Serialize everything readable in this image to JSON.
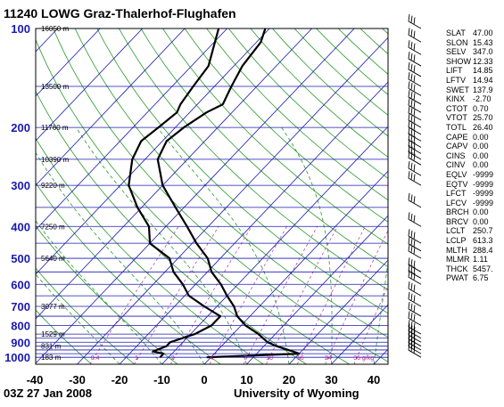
{
  "header": {
    "title": "11240 LOWG Graz-Thalerhof-Flughafen",
    "time": "03Z 27 Jan 2008",
    "source": "University of Wyoming"
  },
  "colors": {
    "grid": "#1a1ab0",
    "dry_adiabat": "#2a9a2a",
    "moist_adiabat": "#2a9a2a",
    "mixing_ratio": "#b0309a",
    "sounding": "#000000"
  },
  "indices": [
    {
      "key": "SLAT",
      "value": "47.00"
    },
    {
      "key": "SLON",
      "value": "15.43"
    },
    {
      "key": "SELV",
      "value": "347.0"
    },
    {
      "key": "SHOW",
      "value": "12.33"
    },
    {
      "key": "LIFT",
      "value": "14.85"
    },
    {
      "key": "LFTV",
      "value": "14.94"
    },
    {
      "key": "SWET",
      "value": "137.9"
    },
    {
      "key": "KINX",
      "value": "-2.70"
    },
    {
      "key": "CTOT",
      "value": "0.70"
    },
    {
      "key": "VTOT",
      "value": "25.70"
    },
    {
      "key": "TOTL",
      "value": "26.40"
    },
    {
      "key": "CAPE",
      "value": "0.00"
    },
    {
      "key": "CAPV",
      "value": "0.00"
    },
    {
      "key": "CINS",
      "value": "0.00"
    },
    {
      "key": "CINV",
      "value": "0.00"
    },
    {
      "key": "EQLV",
      "value": "-9999"
    },
    {
      "key": "EQTV",
      "value": "-9999"
    },
    {
      "key": "LFCT",
      "value": "-9999"
    },
    {
      "key": "LFCV",
      "value": "-9999"
    },
    {
      "key": "BRCH",
      "value": "0.00"
    },
    {
      "key": "BRCV",
      "value": "0.00"
    },
    {
      "key": "LCLT",
      "value": "250.7"
    },
    {
      "key": "LCLP",
      "value": "613.3"
    },
    {
      "key": "MLTH",
      "value": "288.4"
    },
    {
      "key": "MLMR",
      "value": "1.11"
    },
    {
      "key": "THCK",
      "value": "5457."
    },
    {
      "key": "PWAT",
      "value": "6.75"
    }
  ],
  "chart_data": {
    "type": "line",
    "chart_kind": "skew-T log-P sounding",
    "x_axis": {
      "label": "temperature (°C)",
      "ticks": [
        -40,
        -30,
        -20,
        -10,
        0,
        10,
        20,
        30,
        40
      ],
      "range": [
        -40,
        45
      ]
    },
    "y_axis": {
      "label": "pressure (hPa)",
      "scale": "log",
      "ticks": [
        100,
        200,
        300,
        400,
        500,
        600,
        700,
        800,
        900,
        1000
      ],
      "range": [
        1050,
        100
      ]
    },
    "height_labels": [
      {
        "p": 100,
        "text": "16050 m"
      },
      {
        "p": 150,
        "text": "13500 m"
      },
      {
        "p": 200,
        "text": "11760 m"
      },
      {
        "p": 250,
        "text": "10390 m"
      },
      {
        "p": 300,
        "text": "9220 m"
      },
      {
        "p": 400,
        "text": "7250 m"
      },
      {
        "p": 500,
        "text": "5640 m"
      },
      {
        "p": 700,
        "text": "3077 m"
      },
      {
        "p": 850,
        "text": "1529 m"
      },
      {
        "p": 925,
        "text": "831 m"
      },
      {
        "p": 1000,
        "text": "183 m"
      }
    ],
    "mixing_ratio_labels": [
      "0.4",
      "1",
      "2",
      "4",
      "7",
      "10",
      "16",
      "24",
      "36 g/kg"
    ],
    "series": [
      {
        "name": "temperature",
        "points": [
          {
            "p": 1000,
            "t": -1
          },
          {
            "p": 975,
            "t": 20
          },
          {
            "p": 960,
            "t": 18
          },
          {
            "p": 925,
            "t": 13
          },
          {
            "p": 900,
            "t": 10
          },
          {
            "p": 850,
            "t": 6
          },
          {
            "p": 800,
            "t": 1
          },
          {
            "p": 750,
            "t": -3
          },
          {
            "p": 700,
            "t": -6
          },
          {
            "p": 650,
            "t": -10
          },
          {
            "p": 600,
            "t": -14
          },
          {
            "p": 550,
            "t": -19
          },
          {
            "p": 500,
            "t": -23
          },
          {
            "p": 450,
            "t": -29
          },
          {
            "p": 400,
            "t": -35
          },
          {
            "p": 350,
            "t": -42
          },
          {
            "p": 300,
            "t": -50
          },
          {
            "p": 250,
            "t": -57
          },
          {
            "p": 220,
            "t": -59
          },
          {
            "p": 200,
            "t": -58
          },
          {
            "p": 180,
            "t": -56
          },
          {
            "p": 170,
            "t": -54
          },
          {
            "p": 150,
            "t": -56
          },
          {
            "p": 130,
            "t": -58
          },
          {
            "p": 110,
            "t": -59
          },
          {
            "p": 100,
            "t": -61
          }
        ]
      },
      {
        "name": "dewpoint",
        "points": [
          {
            "p": 1000,
            "t": -12
          },
          {
            "p": 975,
            "t": -12
          },
          {
            "p": 960,
            "t": -15
          },
          {
            "p": 925,
            "t": -13
          },
          {
            "p": 900,
            "t": -13
          },
          {
            "p": 850,
            "t": -9
          },
          {
            "p": 800,
            "t": -7
          },
          {
            "p": 750,
            "t": -7
          },
          {
            "p": 700,
            "t": -13
          },
          {
            "p": 650,
            "t": -19
          },
          {
            "p": 600,
            "t": -23
          },
          {
            "p": 550,
            "t": -28
          },
          {
            "p": 500,
            "t": -32
          },
          {
            "p": 450,
            "t": -40
          },
          {
            "p": 400,
            "t": -44
          },
          {
            "p": 350,
            "t": -51
          },
          {
            "p": 300,
            "t": -58
          },
          {
            "p": 250,
            "t": -63
          },
          {
            "p": 220,
            "t": -65
          },
          {
            "p": 200,
            "t": -64
          },
          {
            "p": 180,
            "t": -63
          },
          {
            "p": 170,
            "t": -64
          },
          {
            "p": 150,
            "t": -65
          },
          {
            "p": 130,
            "t": -66
          },
          {
            "p": 100,
            "t": -72
          }
        ]
      }
    ],
    "wind_barbs_pressures": [
      1000,
      975,
      950,
      925,
      900,
      875,
      850,
      800,
      750,
      700,
      650,
      600,
      575,
      550,
      500,
      475,
      450,
      400,
      350,
      300,
      280,
      260,
      250,
      240,
      230,
      220,
      210,
      200,
      190,
      180,
      170,
      160,
      150,
      140,
      130,
      120,
      110,
      100
    ],
    "grid": true
  }
}
